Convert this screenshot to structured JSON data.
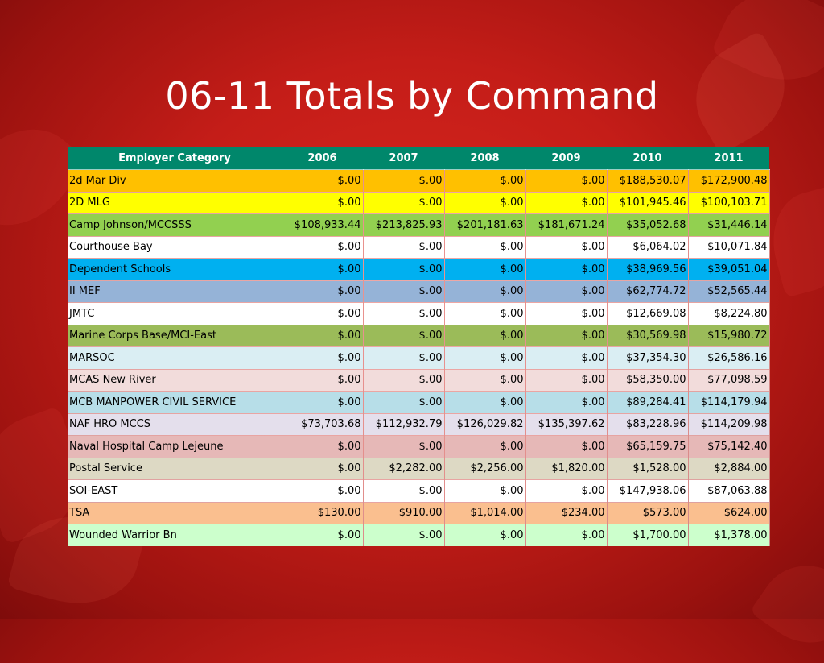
{
  "slide": {
    "title": "06-11 Totals by Command"
  },
  "colors": {
    "header_bg": "#00876b",
    "background": "#c41d18"
  },
  "table": {
    "headers": [
      "Employer Category",
      "2006",
      "2007",
      "2008",
      "2009",
      "2010",
      "2011"
    ],
    "rows": [
      {
        "name": "2d Mar Div",
        "values": [
          "$.00",
          "$.00",
          "$.00",
          "$.00",
          "$188,530.07",
          "$172,900.48"
        ],
        "color": "#ffc000"
      },
      {
        "name": "2D MLG",
        "values": [
          "$.00",
          "$.00",
          "$.00",
          "$.00",
          "$101,945.46",
          "$100,103.71"
        ],
        "color": "#ffff00"
      },
      {
        "name": "Camp Johnson/MCCSSS",
        "values": [
          "$108,933.44",
          "$213,825.93",
          "$201,181.63",
          "$181,671.24",
          "$35,052.68",
          "$31,446.14"
        ],
        "color": "#92d050"
      },
      {
        "name": "Courthouse Bay",
        "values": [
          "$.00",
          "$.00",
          "$.00",
          "$.00",
          "$6,064.02",
          "$10,071.84"
        ],
        "color": "#ffffff"
      },
      {
        "name": "Dependent Schools",
        "values": [
          "$.00",
          "$.00",
          "$.00",
          "$.00",
          "$38,969.56",
          "$39,051.04"
        ],
        "color": "#00b0f0"
      },
      {
        "name": "II MEF",
        "values": [
          "$.00",
          "$.00",
          "$.00",
          "$.00",
          "$62,774.72",
          "$52,565.44"
        ],
        "color": "#95b3d7"
      },
      {
        "name": "JMTC",
        "values": [
          "$.00",
          "$.00",
          "$.00",
          "$.00",
          "$12,669.08",
          "$8,224.80"
        ],
        "color": "#ffffff"
      },
      {
        "name": "Marine Corps Base/MCI-East",
        "values": [
          "$.00",
          "$.00",
          "$.00",
          "$.00",
          "$30,569.98",
          "$15,980.72"
        ],
        "color": "#9bbb59"
      },
      {
        "name": "MARSOC",
        "values": [
          "$.00",
          "$.00",
          "$.00",
          "$.00",
          "$37,354.30",
          "$26,586.16"
        ],
        "color": "#daeef3"
      },
      {
        "name": "MCAS New River",
        "values": [
          "$.00",
          "$.00",
          "$.00",
          "$.00",
          "$58,350.00",
          "$77,098.59"
        ],
        "color": "#f2dcdb"
      },
      {
        "name": "MCB MANPOWER CIVIL SERVICE",
        "values": [
          "$.00",
          "$.00",
          "$.00",
          "$.00",
          "$89,284.41",
          "$114,179.94"
        ],
        "color": "#b7dee8"
      },
      {
        "name": "NAF HRO MCCS",
        "values": [
          "$73,703.68",
          "$112,932.79",
          "$126,029.82",
          "$135,397.62",
          "$83,228.96",
          "$114,209.98"
        ],
        "color": "#e4dfec"
      },
      {
        "name": "Naval Hospital Camp Lejeune",
        "values": [
          "$.00",
          "$.00",
          "$.00",
          "$.00",
          "$65,159.75",
          "$75,142.40"
        ],
        "color": "#e6b8b7"
      },
      {
        "name": "Postal Service",
        "values": [
          "$.00",
          "$2,282.00",
          "$2,256.00",
          "$1,820.00",
          "$1,528.00",
          "$2,884.00"
        ],
        "color": "#ddd9c4"
      },
      {
        "name": "SOI-EAST",
        "values": [
          "$.00",
          "$.00",
          "$.00",
          "$.00",
          "$147,938.06",
          "$87,063.88"
        ],
        "color": "#ffffff"
      },
      {
        "name": "TSA",
        "values": [
          "$130.00",
          "$910.00",
          "$1,014.00",
          "$234.00",
          "$573.00",
          "$624.00"
        ],
        "color": "#fabf8f"
      },
      {
        "name": "Wounded Warrior Bn",
        "values": [
          "$.00",
          "$.00",
          "$.00",
          "$.00",
          "$1,700.00",
          "$1,378.00"
        ],
        "color": "#ccffcc"
      }
    ]
  }
}
